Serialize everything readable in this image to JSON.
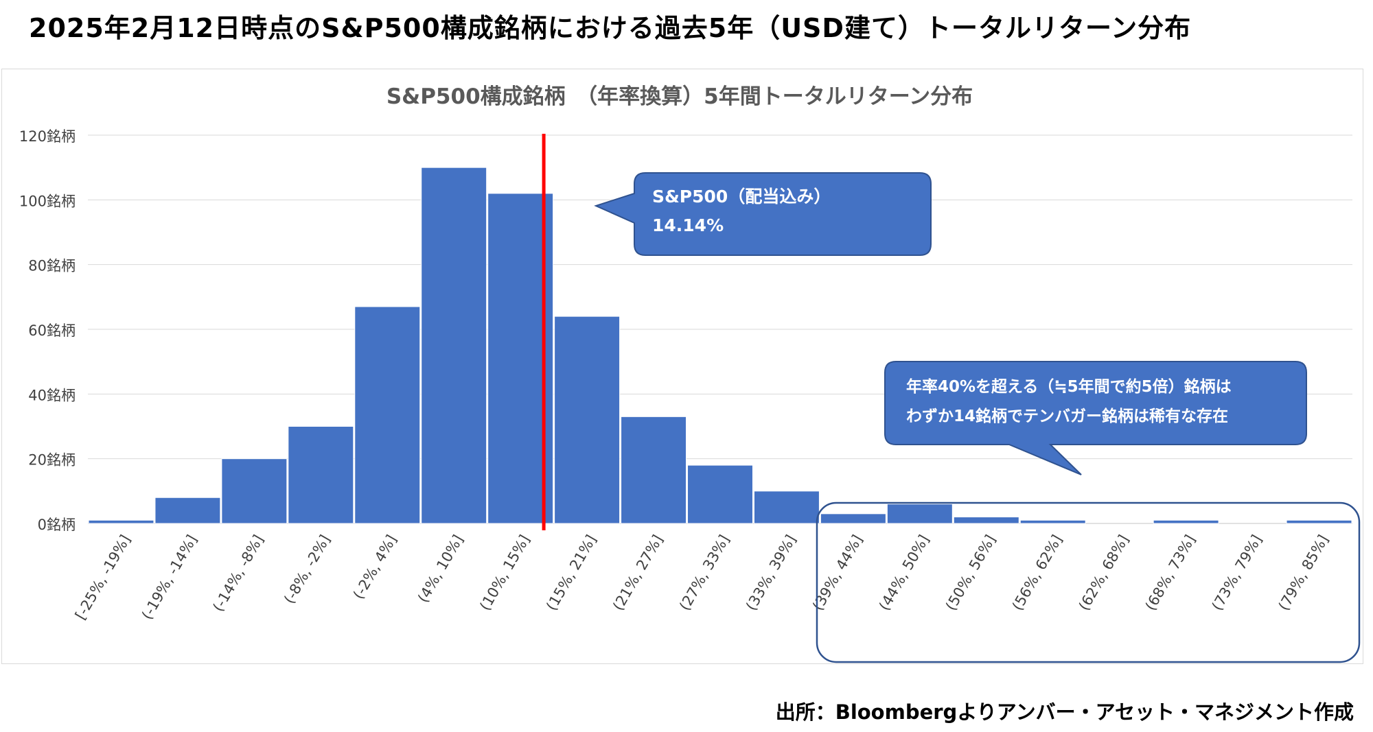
{
  "heading": "2025年2月12日時点のS&P500構成銘柄における過去5年（USD建て）トータルリターン分布",
  "source": "出所：Bloombergよりアンバー・アセット・マネジメント作成",
  "colors": {
    "bar": "#4472C4",
    "marker": "#FF0000",
    "callout": "#4472C4",
    "grid": "#d9d9d9",
    "axis_text": "#404040"
  },
  "chart_data": {
    "type": "bar",
    "title": "S&P500構成銘柄　（年率換算）5年間トータルリターン分布",
    "xlabel": "",
    "ylabel": "",
    "ylim": [
      0,
      120
    ],
    "yticks": [
      0,
      20,
      40,
      60,
      80,
      100,
      120
    ],
    "ytick_labels": [
      "0銘柄",
      "20銘柄",
      "40銘柄",
      "60銘柄",
      "80銘柄",
      "100銘柄",
      "120銘柄"
    ],
    "categories": [
      "[-25%, -19%]",
      "(-19%, -14%]",
      "(-14%, -8%]",
      "(-8%, -2%]",
      "(-2%, 4%]",
      "(4%, 10%]",
      "(10%, 15%]",
      "(15%, 21%]",
      "(21%, 27%]",
      "(27%, 33%]",
      "(33%, 39%]",
      "(39%, 44%]",
      "(44%, 50%]",
      "(50%, 56%]",
      "(56%, 62%]",
      "(62%, 68%]",
      "(68%, 73%]",
      "(73%, 79%]",
      "(79%, 85%]"
    ],
    "values": [
      1,
      8,
      20,
      30,
      67,
      110,
      102,
      64,
      33,
      18,
      10,
      3,
      6,
      2,
      1,
      0,
      1,
      0,
      1
    ],
    "reference_line": {
      "value_category_position": 6.85
    },
    "annotations": [
      {
        "lines": [
          "S&P500（配当込み）",
          "14.14%"
        ]
      },
      {
        "lines": [
          "年率40%を超える（≒5年間で約5倍）銘柄は",
          "わずか14銘柄でテンバガー銘柄は稀有な存在"
        ]
      }
    ]
  }
}
